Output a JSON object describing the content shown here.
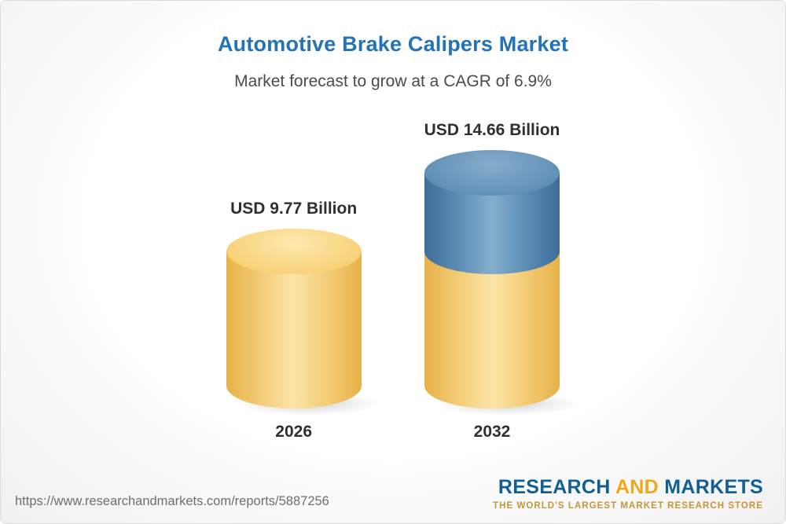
{
  "header": {
    "title": "Automotive Brake Calipers Market",
    "subtitle": "Market forecast to grow at a CAGR of 6.9%"
  },
  "chart_data": {
    "type": "bar",
    "title": "Automotive Brake Calipers Market",
    "subtitle": "Market forecast to grow at a CAGR of 6.9%",
    "cagr_percent": 6.9,
    "unit": "USD Billion",
    "categories": [
      "2026",
      "2032"
    ],
    "values": [
      9.77,
      14.66
    ],
    "data_labels": [
      "USD 9.77 Billion",
      "USD 14.66 Billion"
    ],
    "ylim": [
      0,
      14.66
    ],
    "grid": false,
    "legend": false,
    "layout": "3d-cylinder bars; 2032 bar shows growth segment above 2026 base level",
    "colors": {
      "base_segment": "#f2c35c",
      "growth_segment": "#4e81aa",
      "title_text": "#2273b8",
      "label_text": "#2f2f2f"
    }
  },
  "footer": {
    "url": "https://www.researchandmarkets.com/reports/5887256",
    "logo": {
      "part1": "RESEARCH",
      "part2": "AND",
      "part3": "MARKETS",
      "tagline": "THE WORLD'S LARGEST MARKET RESEARCH STORE"
    }
  }
}
